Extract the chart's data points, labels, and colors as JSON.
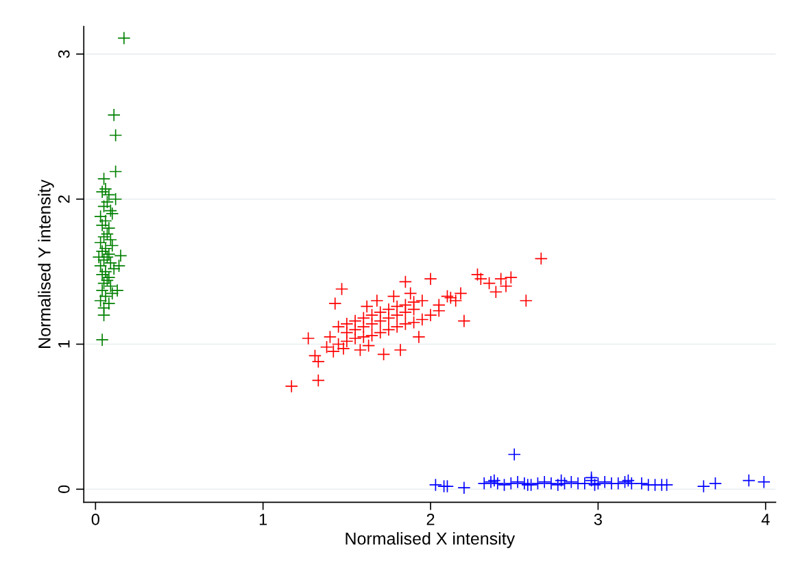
{
  "chart_data": {
    "type": "scatter",
    "xlabel": "Normalised X intensity",
    "ylabel": "Normalised Y intensity",
    "xlim": [
      -0.07,
      4.06
    ],
    "ylim": [
      -0.09,
      3.19
    ],
    "xticks": [
      0,
      1,
      2,
      3,
      4
    ],
    "yticks": [
      0,
      1,
      2,
      3
    ],
    "grid": "y",
    "marker": "cross",
    "series": [
      {
        "color": "#008000",
        "x": [
          0.17,
          0.11,
          0.12,
          0.12,
          0.05,
          0.04,
          0.05,
          0.03,
          0.15,
          0.14,
          0.13,
          0.04,
          0.06,
          0.08,
          0.07,
          0.05,
          0.09,
          0.03,
          0.1,
          0.06,
          0.04,
          0.08,
          0.07,
          0.05,
          0.09,
          0.03,
          0.1,
          0.06,
          0.04,
          0.08,
          0.07,
          0.05,
          0.09,
          0.03,
          0.11,
          0.06,
          0.04,
          0.08,
          0.07,
          0.05,
          0.09,
          0.04,
          0.1,
          0.06,
          0.12,
          0.02,
          0.08,
          0.05
        ],
        "values": [
          3.11,
          2.58,
          2.44,
          2.19,
          2.14,
          1.03,
          1.2,
          1.3,
          1.61,
          1.54,
          1.37,
          2.05,
          2.07,
          2.03,
          1.98,
          1.95,
          1.92,
          1.88,
          1.9,
          1.85,
          1.82,
          1.8,
          1.76,
          1.74,
          1.72,
          1.7,
          1.68,
          1.66,
          1.64,
          1.62,
          1.6,
          1.58,
          1.56,
          1.54,
          1.52,
          1.5,
          1.48,
          1.46,
          1.44,
          1.42,
          1.4,
          1.37,
          1.35,
          1.33,
          2.0,
          1.6,
          1.28,
          1.25
        ]
      },
      {
        "color": "#ff0000",
        "x": [
          1.17,
          1.33,
          2.66,
          2.57,
          1.47,
          1.43,
          2.28,
          2.48,
          2.42,
          2.35,
          2.2,
          2.18,
          2.1,
          1.31,
          1.33,
          1.93,
          1.63,
          2.0,
          1.85,
          2.39,
          1.27,
          1.38,
          1.4,
          1.45,
          1.5,
          1.55,
          1.6,
          1.65,
          1.7,
          1.75,
          1.8,
          1.85,
          1.9,
          1.95,
          2.0,
          2.05,
          1.45,
          1.5,
          1.55,
          1.6,
          1.65,
          1.7,
          1.75,
          1.8,
          1.85,
          1.9,
          1.95,
          1.5,
          1.55,
          1.6,
          1.65,
          1.7,
          1.75,
          1.8,
          1.85,
          1.9,
          2.15,
          2.12,
          2.05,
          1.42,
          1.48,
          1.58,
          1.72,
          1.82,
          1.68,
          1.78,
          1.88,
          2.3,
          2.45,
          1.62
        ],
        "values": [
          0.71,
          0.75,
          1.59,
          1.3,
          1.38,
          1.28,
          1.48,
          1.46,
          1.45,
          1.42,
          1.16,
          1.35,
          1.33,
          0.92,
          0.88,
          1.05,
          0.99,
          1.45,
          1.43,
          1.36,
          1.04,
          0.98,
          1.05,
          1.0,
          1.02,
          1.04,
          1.05,
          1.06,
          1.08,
          1.1,
          1.12,
          1.14,
          1.15,
          1.17,
          1.2,
          1.23,
          1.12,
          1.14,
          1.16,
          1.18,
          1.2,
          1.22,
          1.24,
          1.26,
          1.27,
          1.29,
          1.3,
          1.08,
          1.1,
          1.12,
          1.14,
          1.16,
          1.18,
          1.2,
          1.22,
          1.24,
          1.3,
          1.32,
          1.27,
          0.95,
          0.97,
          0.96,
          0.93,
          0.96,
          1.3,
          1.33,
          1.35,
          1.45,
          1.4,
          1.26
        ]
      },
      {
        "color": "#0000ff",
        "x": [
          2.03,
          2.08,
          2.1,
          2.2,
          2.5,
          2.96,
          3.63,
          3.7,
          3.9,
          3.99,
          2.32,
          2.36,
          2.4,
          2.44,
          2.48,
          2.52,
          2.56,
          2.6,
          2.64,
          2.68,
          2.72,
          2.76,
          2.8,
          2.84,
          2.88,
          2.92,
          2.96,
          3.0,
          3.04,
          3.08,
          3.12,
          3.16,
          3.2,
          3.26,
          3.3,
          3.34,
          3.38,
          3.41,
          2.38,
          2.58,
          2.78,
          2.98,
          3.18
        ],
        "values": [
          0.03,
          0.02,
          0.02,
          0.01,
          0.24,
          0.08,
          0.02,
          0.04,
          0.06,
          0.05,
          0.04,
          0.05,
          0.04,
          0.03,
          0.04,
          0.05,
          0.04,
          0.03,
          0.04,
          0.05,
          0.04,
          0.03,
          0.04,
          0.05,
          0.04,
          0.04,
          0.06,
          0.04,
          0.05,
          0.04,
          0.04,
          0.05,
          0.04,
          0.04,
          0.03,
          0.03,
          0.03,
          0.03,
          0.06,
          0.03,
          0.06,
          0.03,
          0.06
        ]
      }
    ]
  }
}
